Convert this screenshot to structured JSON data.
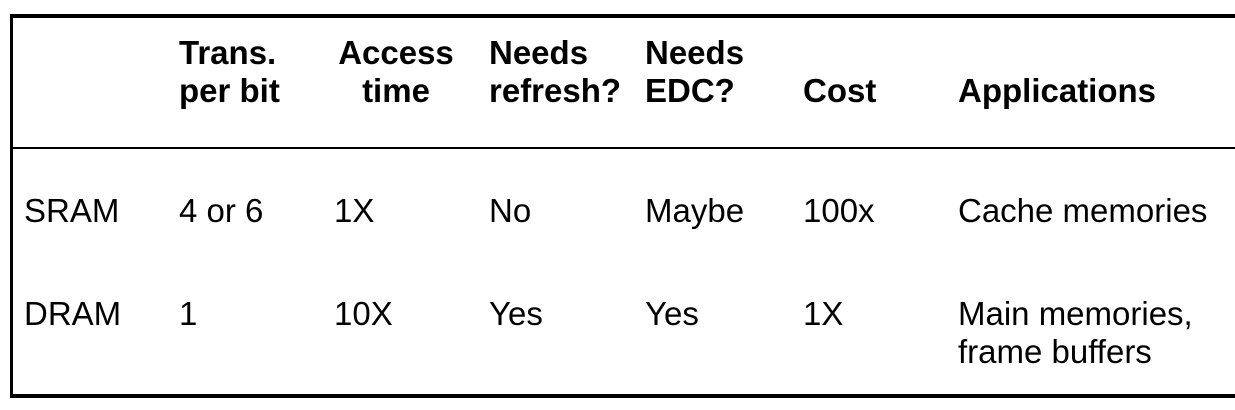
{
  "table": {
    "headers": [
      {
        "key": "mem",
        "line1": "",
        "line2": ""
      },
      {
        "key": "trans",
        "line1": "Trans.",
        "line2": "per bit"
      },
      {
        "key": "access",
        "line1": "Access",
        "line2": "time"
      },
      {
        "key": "refresh",
        "line1": "Needs",
        "line2": "refresh?"
      },
      {
        "key": "edc",
        "line1": "Needs",
        "line2": "EDC?"
      },
      {
        "key": "cost",
        "line1": "",
        "line2": "Cost"
      },
      {
        "key": "apps",
        "line1": "",
        "line2": "Applications"
      }
    ],
    "rows": [
      {
        "type": "SRAM",
        "trans": "4 or 6",
        "access": "1X",
        "refresh": "No",
        "edc": "Maybe",
        "cost": "100x",
        "apps_line1": "Cache memories",
        "apps_line2": ""
      },
      {
        "type": "DRAM",
        "trans": "1",
        "access": "10X",
        "refresh": "Yes",
        "edc": "Yes",
        "cost": "1X",
        "apps_line1": "Main memories,",
        "apps_line2": "frame buffers"
      }
    ]
  }
}
